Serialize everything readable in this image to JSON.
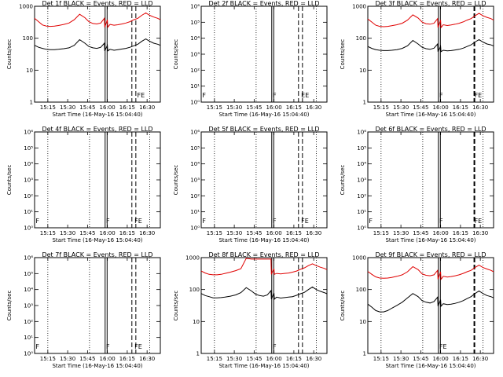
{
  "chart_data": [
    {
      "type": "line",
      "title": "Det 1f BLACK = Events, RED = LLD",
      "xlabel": "Start Time (16-May-16 15:04:40)",
      "ylabel": "Counts/sec",
      "ylim": [
        1,
        1000
      ],
      "ylog": true,
      "xticks": [
        "15:15",
        "15:30",
        "15:45",
        "16:00",
        "16:15",
        "16:30"
      ],
      "yticks": [
        "1",
        "10",
        "100",
        "1000"
      ],
      "xlim_min": [
        0,
        95
      ],
      "grid": false,
      "dotted_x": [
        10,
        41.5,
        87
      ],
      "solid_x": [
        53.3,
        54.8
      ],
      "dashed_x": [
        73.5,
        76.5
      ],
      "flag_labels": [
        {
          "x": 77.5,
          "text": "FE"
        }
      ],
      "series": [
        {
          "color": "#000000",
          "x": [
            0,
            3,
            6,
            9,
            12,
            15,
            18,
            22,
            26,
            30,
            34,
            38,
            41,
            44,
            47,
            50,
            52.7,
            53,
            55,
            55.3,
            57,
            60,
            63,
            66,
            69,
            72,
            75,
            78,
            81,
            84,
            87,
            90,
            93,
            95
          ],
          "y": [
            60,
            52,
            48,
            45,
            44,
            44,
            45,
            47,
            50,
            60,
            90,
            70,
            55,
            50,
            48,
            52,
            70,
            40,
            60,
            40,
            45,
            42,
            44,
            46,
            48,
            52,
            58,
            65,
            80,
            95,
            80,
            70,
            65,
            60
          ]
        },
        {
          "color": "#e00000",
          "x": [
            0,
            3,
            6,
            9,
            12,
            15,
            18,
            22,
            26,
            30,
            34,
            38,
            41,
            44,
            47,
            50,
            52.7,
            53,
            55,
            55.3,
            57,
            60,
            63,
            66,
            69,
            72,
            75,
            78,
            81,
            84,
            87,
            90,
            93,
            95
          ],
          "y": [
            420,
            330,
            260,
            240,
            235,
            240,
            250,
            270,
            300,
            380,
            560,
            440,
            330,
            290,
            280,
            300,
            420,
            220,
            380,
            220,
            270,
            255,
            265,
            280,
            300,
            330,
            380,
            420,
            520,
            620,
            520,
            460,
            420,
            380
          ]
        }
      ]
    },
    {
      "type": "line",
      "title": "Det 2f BLACK = Events, RED = LLD",
      "xlabel": "Start Time (16-May-16 15:04:40)",
      "ylabel": "Counts/sec",
      "ylim": [
        1,
        1000000
      ],
      "ylog": true,
      "xticks": [
        "15:15",
        "15:30",
        "15:45",
        "16:00",
        "16:15",
        "16:30"
      ],
      "yticks": [
        "10⁰",
        "10¹",
        "10²",
        "10³",
        "10⁴",
        "10⁵",
        "10⁶"
      ],
      "xlim_min": [
        0,
        95
      ],
      "grid": false,
      "dotted_x": [
        10,
        41.5,
        87
      ],
      "solid_x": [
        53.3,
        54.8
      ],
      "dashed_x": [
        73.5,
        76.5
      ],
      "flag_labels": [
        {
          "x": 0.8,
          "text": "F"
        },
        {
          "x": 54,
          "text": "F"
        },
        {
          "x": 75.5,
          "text": "EE"
        }
      ],
      "series": []
    },
    {
      "type": "line",
      "title": "Det 3f BLACK = Events, RED = LLD",
      "xlabel": "Start Time (16-May-16 15:04:40)",
      "ylabel": "Counts/sec",
      "ylim": [
        1,
        1000
      ],
      "ylog": true,
      "xticks": [
        "15:15",
        "15:30",
        "15:45",
        "16:00",
        "16:15",
        "16:30"
      ],
      "yticks": [
        "1",
        "10",
        "100",
        "1000"
      ],
      "xlim_min": [
        0,
        95
      ],
      "grid": false,
      "dotted_x": [
        10,
        41.5,
        87
      ],
      "solid_x": [
        53.3,
        54.8
      ],
      "dashed_x": [
        80.5
      ],
      "flag_labels": [
        {
          "x": 54,
          "text": "F"
        },
        {
          "x": 80.5,
          "text": "FE"
        }
      ],
      "series": [
        {
          "color": "#000000",
          "x": [
            0,
            3,
            6,
            9,
            12,
            15,
            18,
            22,
            26,
            30,
            34,
            38,
            41,
            44,
            47,
            50,
            52.7,
            53,
            55,
            55.3,
            57,
            60,
            63,
            66,
            69,
            72,
            75,
            78,
            81,
            84,
            87,
            90,
            93,
            95
          ],
          "y": [
            55,
            48,
            44,
            42,
            41,
            41,
            42,
            44,
            48,
            58,
            85,
            66,
            52,
            47,
            45,
            49,
            66,
            38,
            56,
            38,
            42,
            40,
            41,
            43,
            45,
            49,
            55,
            62,
            76,
            90,
            76,
            66,
            62,
            57
          ]
        },
        {
          "color": "#e00000",
          "x": [
            0,
            3,
            6,
            9,
            12,
            15,
            18,
            22,
            26,
            30,
            34,
            38,
            41,
            44,
            47,
            50,
            52.7,
            53,
            55,
            55.3,
            57,
            60,
            63,
            66,
            69,
            72,
            75,
            78,
            81,
            84,
            87,
            90,
            93,
            95
          ],
          "y": [
            400,
            320,
            255,
            235,
            230,
            235,
            245,
            265,
            295,
            370,
            540,
            430,
            320,
            285,
            275,
            295,
            410,
            215,
            370,
            215,
            265,
            250,
            260,
            275,
            295,
            325,
            370,
            410,
            505,
            600,
            505,
            450,
            410,
            370
          ]
        }
      ]
    },
    {
      "type": "line",
      "title": "Det 4f BLACK = Events, RED = LLD",
      "xlabel": "Start Time (16-May-16 15:04:40)",
      "ylabel": "Counts/sec",
      "ylim": [
        1,
        1000000
      ],
      "ylog": true,
      "xticks": [
        "15:15",
        "15:30",
        "15:45",
        "16:00",
        "16:15",
        "16:30"
      ],
      "yticks": [
        "10⁰",
        "10¹",
        "10²",
        "10³",
        "10⁴",
        "10⁵",
        "10⁶"
      ],
      "xlim_min": [
        0,
        95
      ],
      "grid": false,
      "dotted_x": [
        10,
        41.5,
        87
      ],
      "solid_x": [
        53.3,
        54.8
      ],
      "dashed_x": [
        73.5,
        76.5
      ],
      "flag_labels": [
        {
          "x": 0.8,
          "text": "F"
        },
        {
          "x": 54,
          "text": "F"
        },
        {
          "x": 75.5,
          "text": "FE"
        }
      ],
      "series": []
    },
    {
      "type": "line",
      "title": "Det 5f BLACK = Events, RED = LLD",
      "xlabel": "Start Time (16-May-16 15:04:40)",
      "ylabel": "Counts/sec",
      "ylim": [
        1,
        1000000
      ],
      "ylog": true,
      "xticks": [
        "15:15",
        "15:30",
        "15:45",
        "16:00",
        "16:15",
        "16:30"
      ],
      "yticks": [
        "10⁰",
        "10¹",
        "10²",
        "10³",
        "10⁴",
        "10⁵",
        "10⁶"
      ],
      "xlim_min": [
        0,
        95
      ],
      "grid": false,
      "dotted_x": [
        10,
        41.5,
        87
      ],
      "solid_x": [
        53.3,
        54.8
      ],
      "dashed_x": [
        73.5,
        76.5
      ],
      "flag_labels": [
        {
          "x": 0.8,
          "text": "F"
        },
        {
          "x": 54,
          "text": "F"
        },
        {
          "x": 75.5,
          "text": "FE"
        }
      ],
      "series": []
    },
    {
      "type": "line",
      "title": "Det 6f BLACK = Events, RED = LLD",
      "xlabel": "Start Time (16-May-16 15:04:40)",
      "ylabel": "Counts/sec",
      "ylim": [
        1,
        1000000
      ],
      "ylog": true,
      "xticks": [
        "15:15",
        "15:30",
        "15:45",
        "16:00",
        "16:15",
        "16:30"
      ],
      "yticks": [
        "10⁰",
        "10¹",
        "10²",
        "10³",
        "10⁴",
        "10⁵",
        "10⁶"
      ],
      "xlim_min": [
        0,
        95
      ],
      "grid": false,
      "dotted_x": [
        10,
        41.5,
        87
      ],
      "solid_x": [
        53.3,
        54.8
      ],
      "dashed_x": [
        80.5
      ],
      "flag_labels": [
        {
          "x": 0.8,
          "text": "F"
        },
        {
          "x": 54,
          "text": "F"
        },
        {
          "x": 80.5,
          "text": "FE"
        }
      ],
      "series": []
    },
    {
      "type": "line",
      "title": "Det 7f BLACK = Events, RED = LLD",
      "xlabel": "Start Time (16-May-16 15:04:40)",
      "ylabel": "Counts/sec",
      "ylim": [
        1,
        1000000
      ],
      "ylog": true,
      "xticks": [
        "15:15",
        "15:30",
        "15:45",
        "16:00",
        "16:15",
        "16:30"
      ],
      "yticks": [
        "10⁰",
        "10¹",
        "10²",
        "10³",
        "10⁴",
        "10⁵",
        "10⁶"
      ],
      "xlim_min": [
        0,
        95
      ],
      "grid": false,
      "dotted_x": [
        10,
        41.5,
        87
      ],
      "solid_x": [
        53.3,
        54.8
      ],
      "dashed_x": [
        73.5,
        76.5
      ],
      "flag_labels": [
        {
          "x": 0.8,
          "text": "F"
        },
        {
          "x": 54,
          "text": "F"
        },
        {
          "x": 75.5,
          "text": "FE"
        }
      ],
      "series": []
    },
    {
      "type": "line",
      "title": "Det 8f BLACK = Events, RED = LLD",
      "xlabel": "Start Time (16-May-16 15:04:40)",
      "ylabel": "Counts/sec",
      "ylim": [
        1,
        1000
      ],
      "ylog": true,
      "xticks": [
        "15:15",
        "15:30",
        "15:45",
        "16:00",
        "16:15",
        "16:30"
      ],
      "yticks": [
        "1",
        "10",
        "100",
        "1000"
      ],
      "xlim_min": [
        0,
        95
      ],
      "grid": false,
      "dotted_x": [
        10,
        41.5,
        87
      ],
      "solid_x": [
        53.3,
        54.8
      ],
      "dashed_x": [
        73.5,
        76.5
      ],
      "flag_labels": [
        {
          "x": 54,
          "text": "F"
        }
      ],
      "series": [
        {
          "color": "#000000",
          "x": [
            0,
            3,
            6,
            9,
            12,
            15,
            18,
            22,
            26,
            30,
            34,
            38,
            41,
            44,
            47,
            50,
            52.7,
            53,
            55,
            55.3,
            57,
            60,
            63,
            66,
            69,
            72,
            75,
            78,
            81,
            84,
            87,
            90,
            93,
            95
          ],
          "y": [
            75,
            65,
            60,
            55,
            55,
            56,
            58,
            62,
            68,
            80,
            115,
            90,
            72,
            65,
            62,
            68,
            92,
            50,
            78,
            50,
            58,
            54,
            56,
            58,
            60,
            66,
            74,
            82,
            100,
            120,
            100,
            88,
            80,
            74
          ]
        },
        {
          "color": "#e00000",
          "x": [
            0,
            3,
            6,
            9,
            12,
            15,
            18,
            22,
            26,
            30,
            34,
            38,
            41,
            44,
            47,
            50,
            52.7,
            53,
            55,
            55.3,
            57,
            60,
            63,
            66,
            69,
            72,
            75,
            78,
            81,
            84,
            87,
            90,
            93,
            95
          ],
          "y": [
            380,
            330,
            300,
            290,
            290,
            300,
            320,
            350,
            390,
            450,
            950,
            900,
            900,
            900,
            900,
            900,
            900,
            300,
            450,
            300,
            320,
            310,
            320,
            330,
            350,
            380,
            430,
            480,
            560,
            640,
            560,
            500,
            460,
            420
          ]
        }
      ]
    },
    {
      "type": "line",
      "title": "Det 9f BLACK = Events, RED = LLD",
      "xlabel": "Start Time (16-May-16 15:04:40)",
      "ylabel": "Counts/sec",
      "ylim": [
        1,
        1000
      ],
      "ylog": true,
      "xticks": [
        "15:15",
        "15:30",
        "15:45",
        "16:00",
        "16:15",
        "16:30"
      ],
      "yticks": [
        "1",
        "10",
        "100",
        "1000"
      ],
      "xlim_min": [
        0,
        95
      ],
      "grid": false,
      "dotted_x": [
        10,
        41.5,
        87
      ],
      "solid_x": [
        53.3,
        54.8
      ],
      "dashed_x": [
        80.5
      ],
      "flag_labels": [
        {
          "x": 54,
          "text": "FE"
        }
      ],
      "series": [
        {
          "color": "#000000",
          "x": [
            0,
            3,
            6,
            9,
            12,
            15,
            18,
            22,
            26,
            30,
            34,
            38,
            41,
            44,
            47,
            50,
            52.7,
            53,
            55,
            55.3,
            57,
            60,
            63,
            66,
            69,
            72,
            75,
            78,
            81,
            84,
            87,
            90,
            93,
            95
          ],
          "y": [
            35,
            28,
            22,
            20,
            20,
            22,
            26,
            32,
            40,
            55,
            75,
            60,
            45,
            40,
            38,
            42,
            58,
            30,
            48,
            30,
            36,
            34,
            35,
            37,
            40,
            45,
            52,
            60,
            75,
            90,
            75,
            65,
            60,
            55
          ]
        },
        {
          "color": "#e00000",
          "x": [
            0,
            3,
            6,
            9,
            12,
            15,
            18,
            22,
            26,
            30,
            34,
            38,
            41,
            44,
            47,
            50,
            52.7,
            53,
            55,
            55.3,
            57,
            60,
            63,
            66,
            69,
            72,
            75,
            78,
            81,
            84,
            87,
            90,
            93,
            95
          ],
          "y": [
            370,
            300,
            250,
            230,
            225,
            230,
            240,
            260,
            290,
            360,
            520,
            420,
            310,
            280,
            270,
            290,
            400,
            210,
            360,
            210,
            260,
            245,
            255,
            270,
            290,
            320,
            360,
            400,
            490,
            580,
            490,
            440,
            400,
            360
          ]
        }
      ]
    }
  ]
}
